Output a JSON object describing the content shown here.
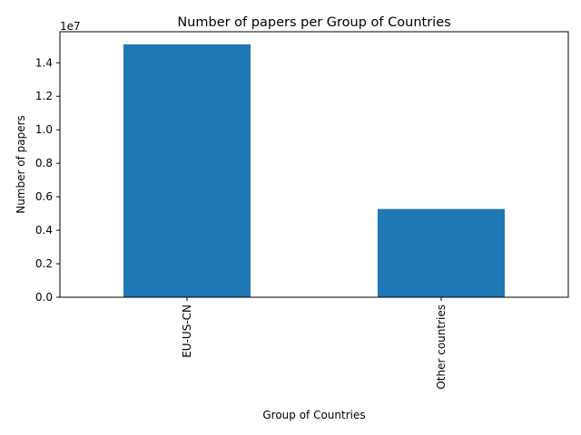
{
  "chart_data": {
    "type": "bar",
    "title": "Number of papers per Group of Countries",
    "xlabel": "Group of Countries",
    "ylabel": "Number of papers",
    "y_offset_label": "1e7",
    "categories": [
      "EU-US-CN",
      "Other countries"
    ],
    "values": [
      15100000,
      5270000
    ],
    "ylim": [
      0,
      15855000
    ],
    "y_ticks": [
      0,
      2000000,
      4000000,
      6000000,
      8000000,
      10000000,
      12000000,
      14000000
    ],
    "y_tick_labels": [
      "0.0",
      "0.2",
      "0.4",
      "0.6",
      "0.8",
      "1.0",
      "1.2",
      "1.4"
    ],
    "grid": false,
    "bar_color": "#1f77b4"
  }
}
